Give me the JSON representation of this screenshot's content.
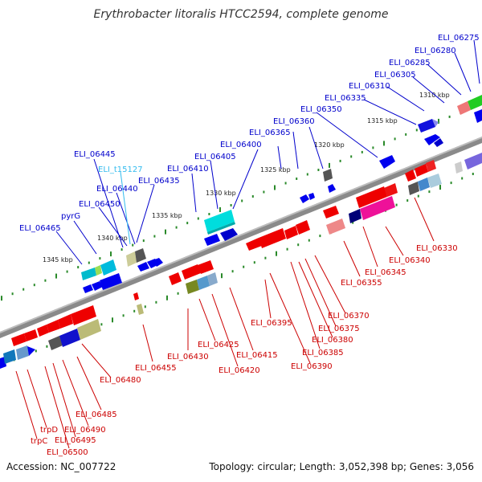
{
  "title": "Erythrobacter litoralis HTCC2594, complete genome",
  "footer": {
    "accession": "Accession: NC_007722",
    "summary": "Topology: circular; Length: 3,052,398 bp; Genes: 3,056"
  },
  "colors": {
    "backbone": "#888888",
    "forward_label": "#0000cc",
    "reverse_label": "#cc0000",
    "trna_label": "#33bbee",
    "tick": "#2a8a2a"
  },
  "kbp_ticks": [
    "1310 kbp",
    "1315 kbp",
    "1320 kbp",
    "1325 kbp",
    "1330 kbp",
    "1335 kbp",
    "1340 kbp",
    "1345 kbp"
  ],
  "forward_genes": [
    "ELI_06275",
    "ELI_06280",
    "ELI_06285",
    "ELI_06305",
    "ELI_06310",
    "ELI_06335",
    "ELI_06350",
    "ELI_06360",
    "ELI_06365",
    "ELI_06400",
    "ELI_06405",
    "ELI_06410",
    "ELI_06435",
    "ELI_06440",
    "ELI_06445",
    "ELI_06450",
    "pyrG",
    "ELI_06465"
  ],
  "trna_genes": [
    "ELI_t15127"
  ],
  "reverse_genes": [
    "ELI_06330",
    "ELI_06340",
    "ELI_06345",
    "ELI_06355",
    "ELI_06370",
    "ELI_06375",
    "ELI_06380",
    "ELI_06385",
    "ELI_06390",
    "ELI_06395",
    "ELI_06415",
    "ELI_06420",
    "ELI_06425",
    "ELI_06430",
    "ELI_06455",
    "ELI_06480",
    "ELI_06485",
    "ELI_06490",
    "ELI_06495",
    "ELI_06500",
    "trpD",
    "trpC"
  ]
}
